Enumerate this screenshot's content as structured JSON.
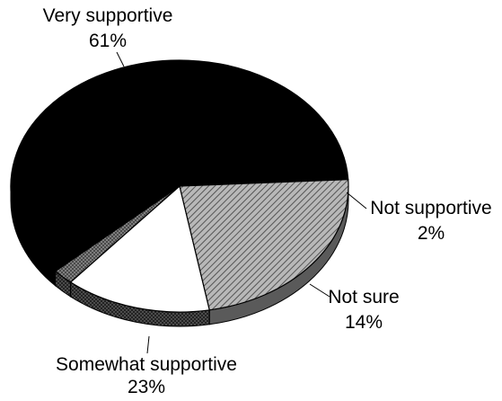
{
  "chart_data": {
    "type": "pie",
    "title": "",
    "series": [
      {
        "values": [
          61,
          2,
          14,
          23
        ]
      }
    ],
    "slices": [
      {
        "label": "Very supportive",
        "value": 61,
        "value_label": "61%",
        "color": "#000000",
        "pattern": "solid"
      },
      {
        "label": "Not supportive",
        "value": 2,
        "value_label": "2%",
        "color": "#333333",
        "pattern": "dotted"
      },
      {
        "label": "Not sure",
        "value": 14,
        "value_label": "14%",
        "color": "#ffffff",
        "pattern": "solid"
      },
      {
        "label": "Somewhat supportive",
        "value": 23,
        "value_label": "23%",
        "color": "#9a9a9a",
        "pattern": "hatched"
      }
    ],
    "style": "3d-tilted"
  }
}
